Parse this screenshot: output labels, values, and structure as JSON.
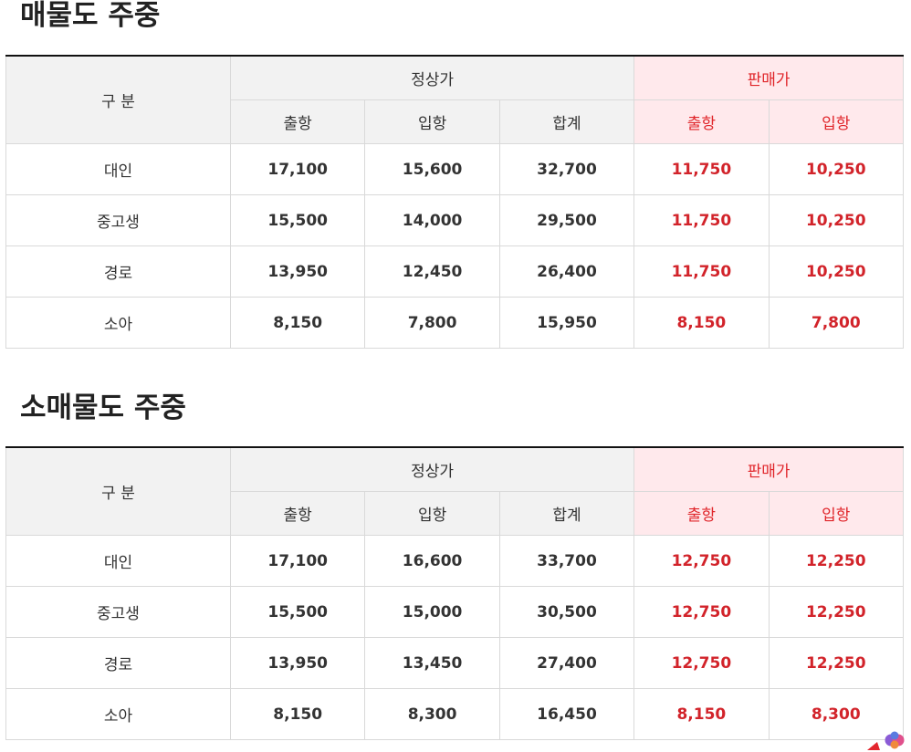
{
  "sections": [
    {
      "title": "매물도 주중",
      "header": {
        "category": "구 분",
        "regular_group": "정상가",
        "sale_group": "판매가",
        "regular_cols": [
          "출항",
          "입항",
          "합계"
        ],
        "sale_cols": [
          "출항",
          "입항"
        ]
      },
      "rows": [
        {
          "category": "대인",
          "regular_out": "17,100",
          "regular_in": "15,600",
          "regular_total": "32,700",
          "sale_out": "11,750",
          "sale_in": "10,250"
        },
        {
          "category": "중고생",
          "regular_out": "15,500",
          "regular_in": "14,000",
          "regular_total": "29,500",
          "sale_out": "11,750",
          "sale_in": "10,250"
        },
        {
          "category": "경로",
          "regular_out": "13,950",
          "regular_in": "12,450",
          "regular_total": "26,400",
          "sale_out": "11,750",
          "sale_in": "10,250"
        },
        {
          "category": "소아",
          "regular_out": "8,150",
          "regular_in": "7,800",
          "regular_total": "15,950",
          "sale_out": "8,150",
          "sale_in": "7,800"
        }
      ]
    },
    {
      "title": "소매물도 주중",
      "header": {
        "category": "구 분",
        "regular_group": "정상가",
        "sale_group": "판매가",
        "regular_cols": [
          "출항",
          "입항",
          "합계"
        ],
        "sale_cols": [
          "출항",
          "입항"
        ]
      },
      "rows": [
        {
          "category": "대인",
          "regular_out": "17,100",
          "regular_in": "16,600",
          "regular_total": "33,700",
          "sale_out": "12,750",
          "sale_in": "12,250"
        },
        {
          "category": "중고생",
          "regular_out": "15,500",
          "regular_in": "15,000",
          "regular_total": "30,500",
          "sale_out": "12,750",
          "sale_in": "12,250"
        },
        {
          "category": "경로",
          "regular_out": "13,950",
          "regular_in": "13,450",
          "regular_total": "27,400",
          "sale_out": "12,750",
          "sale_in": "12,250"
        },
        {
          "category": "소아",
          "regular_out": "8,150",
          "regular_in": "8,300",
          "regular_total": "16,450",
          "sale_out": "8,150",
          "sale_in": "8,300"
        }
      ]
    }
  ],
  "colors": {
    "sale_text": "#d2232a",
    "sale_header_bg": "#ffe9ec",
    "header_bg": "#f2f2f2",
    "border": "#d9d9d9"
  },
  "icons": {
    "corner_widget": "brain-logo-icon"
  }
}
